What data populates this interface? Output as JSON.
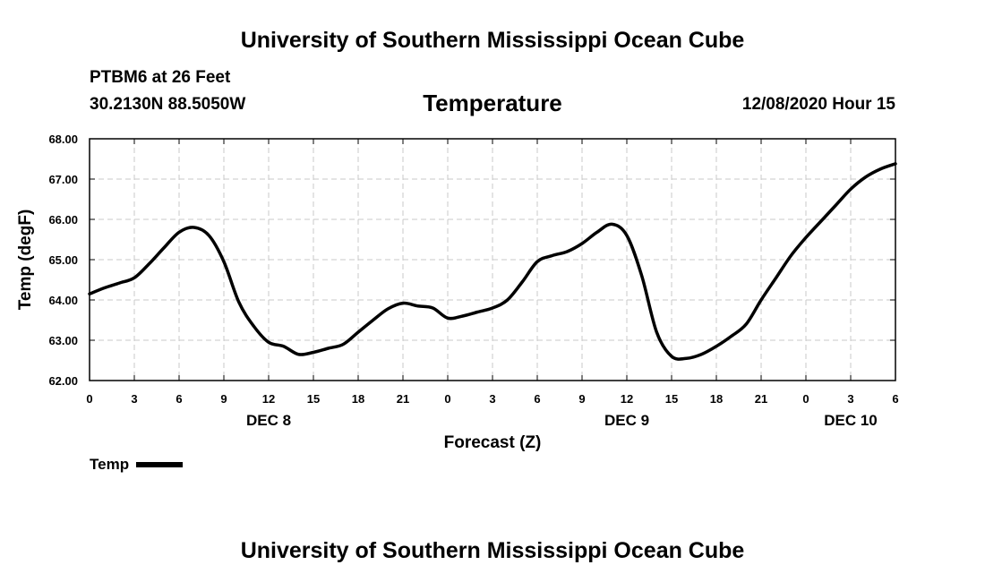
{
  "header": {
    "title": "University of Southern Mississippi Ocean Cube",
    "station": "PTBM6 at 26 Feet",
    "coordinates": "30.2130N 88.5050W",
    "chart_title": "Temperature",
    "datetime": "12/08/2020 Hour 15"
  },
  "footer": {
    "title": "University of Southern Mississippi Ocean Cube"
  },
  "legend": {
    "label": "Temp"
  },
  "colors": {
    "line": "#000000",
    "grid": "#c8c8c8"
  },
  "chart_data": {
    "type": "line",
    "title": "Temperature",
    "xlabel": "Forecast (Z)",
    "ylabel": "Temp (degF)",
    "xlim": [
      0,
      54
    ],
    "ylim": [
      62,
      68
    ],
    "grid": true,
    "legend_position": "bottom-left",
    "x_ticks": [
      0,
      3,
      6,
      9,
      12,
      15,
      18,
      21,
      24,
      27,
      30,
      33,
      36,
      39,
      42,
      45,
      48,
      51,
      54
    ],
    "x_tick_labels": [
      "0",
      "3",
      "6",
      "9",
      "12",
      "15",
      "18",
      "21",
      "0",
      "3",
      "6",
      "9",
      "12",
      "15",
      "18",
      "21",
      "0",
      "3",
      "6"
    ],
    "y_ticks": [
      62,
      63,
      64,
      65,
      66,
      67,
      68
    ],
    "y_tick_labels": [
      "62.00",
      "63.00",
      "64.00",
      "65.00",
      "66.00",
      "67.00",
      "68.00"
    ],
    "day_labels": [
      {
        "x": 12,
        "label": "DEC 8"
      },
      {
        "x": 36,
        "label": "DEC 9"
      },
      {
        "x": 51,
        "label": "DEC 10"
      }
    ],
    "series": [
      {
        "name": "Temp",
        "x": [
          0,
          1,
          2,
          3,
          4,
          5,
          6,
          7,
          8,
          9,
          10,
          11,
          12,
          13,
          14,
          15,
          16,
          17,
          18,
          19,
          20,
          21,
          22,
          23,
          24,
          25,
          26,
          27,
          28,
          29,
          30,
          31,
          32,
          33,
          34,
          35,
          36,
          37,
          38,
          39,
          40,
          41,
          42,
          43,
          44,
          45,
          46,
          47,
          48,
          49,
          50,
          51,
          52,
          53,
          54
        ],
        "values": [
          64.15,
          64.3,
          64.42,
          64.55,
          64.9,
          65.3,
          65.68,
          65.8,
          65.6,
          64.95,
          63.95,
          63.35,
          62.95,
          62.85,
          62.65,
          62.7,
          62.8,
          62.9,
          63.2,
          63.5,
          63.78,
          63.92,
          63.85,
          63.8,
          63.55,
          63.6,
          63.7,
          63.8,
          64.0,
          64.45,
          64.95,
          65.1,
          65.2,
          65.4,
          65.68,
          65.88,
          65.6,
          64.6,
          63.2,
          62.6,
          62.55,
          62.65,
          62.85,
          63.1,
          63.4,
          64.0,
          64.55,
          65.1,
          65.55,
          65.95,
          66.35,
          66.75,
          67.05,
          67.25,
          67.38
        ]
      }
    ]
  }
}
